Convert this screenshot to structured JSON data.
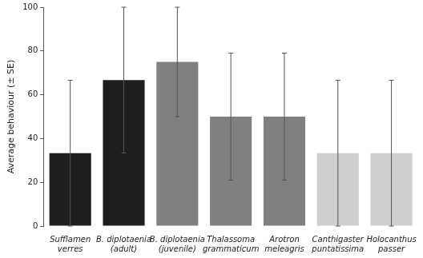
{
  "chart_data": {
    "type": "bar",
    "y_label": "Average behaviour (± SE)",
    "categories": [
      [
        "Sufflamen",
        "verres"
      ],
      [
        "B. diplotaenia",
        "(adult)"
      ],
      [
        "B. diplotaenia",
        "(juvenile)"
      ],
      [
        "Thalassoma",
        "grammaticum"
      ],
      [
        "Arotron",
        "meleagris"
      ],
      [
        "Canthigaster",
        "puntatissima"
      ],
      [
        "Holocanthus",
        "passer"
      ]
    ],
    "values": [
      33.3,
      66.7,
      75,
      50,
      50,
      33.3,
      33.3
    ],
    "errors": [
      33.3,
      33.3,
      25,
      29,
      29,
      33.3,
      33.3
    ],
    "colors": [
      "#1e1e1e",
      "#1e1e1e",
      "#808080",
      "#808080",
      "#808080",
      "#cfcfcf",
      "#cfcfcf"
    ],
    "ylim": [
      0,
      100
    ],
    "yticks": [
      0,
      20,
      40,
      60,
      80,
      100
    ],
    "grid": false
  }
}
